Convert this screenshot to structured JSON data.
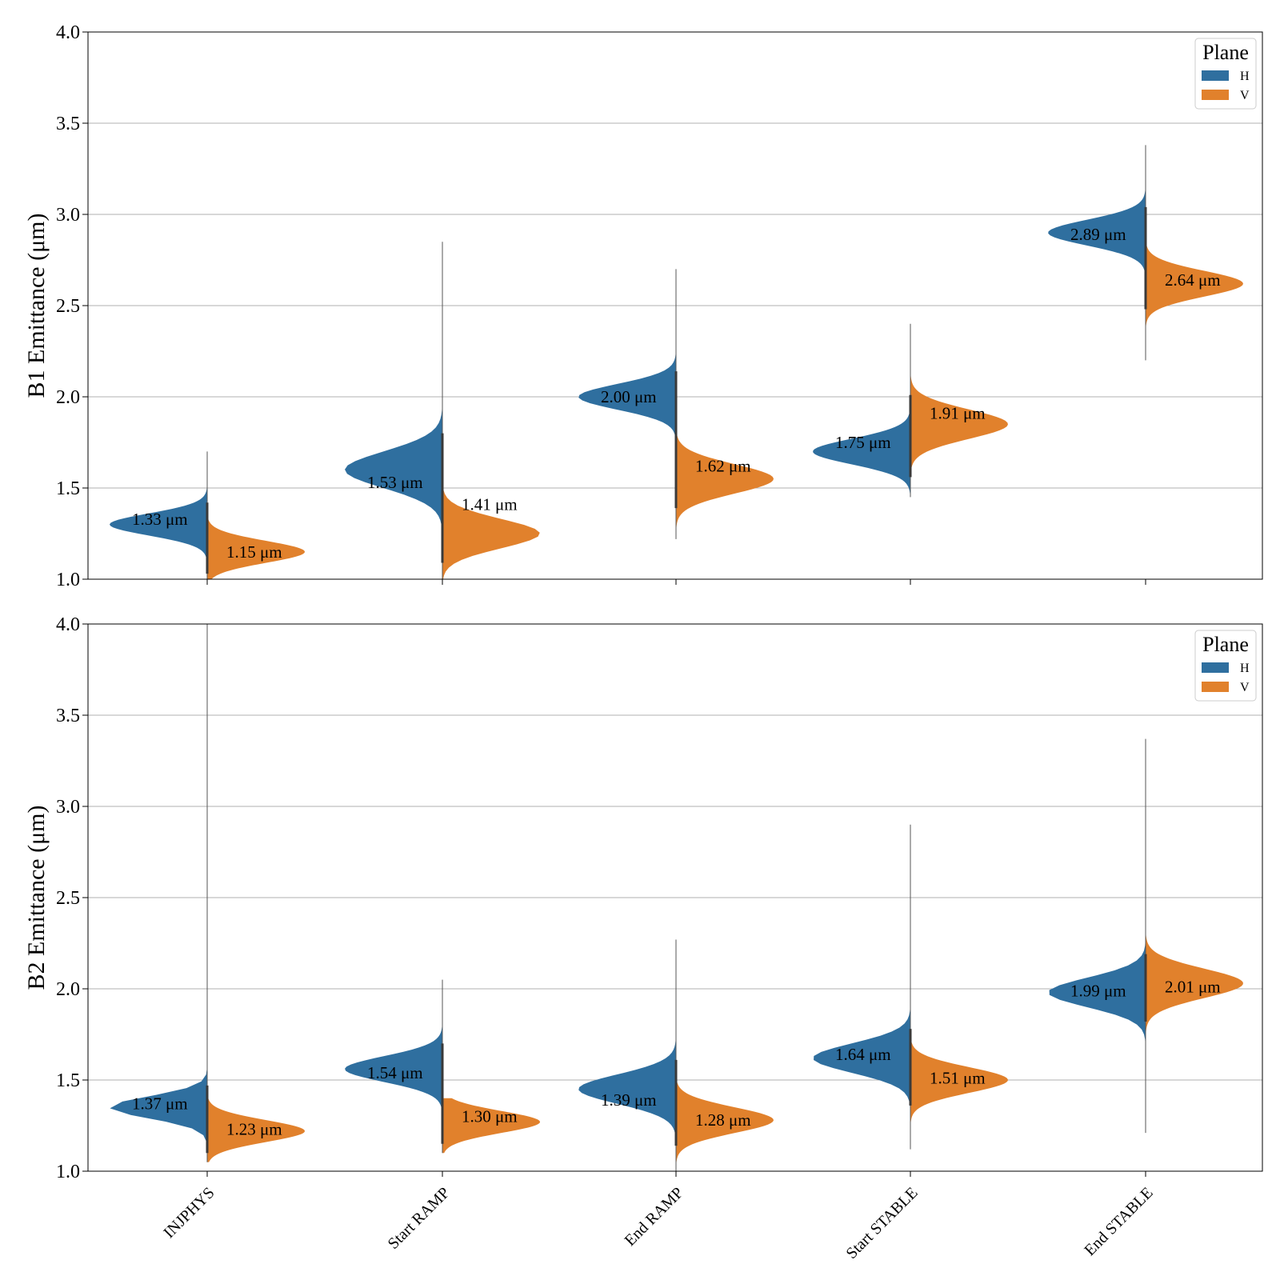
{
  "chart_data": [
    {
      "type": "violin",
      "ylabel": "B1 Emittance (μm)",
      "ylim": [
        1.0,
        4.0
      ],
      "yticks": [
        "1.0",
        "1.5",
        "2.0",
        "2.5",
        "3.0",
        "3.5",
        "4.0"
      ],
      "grid": true,
      "categories": [
        "INJPHYS",
        "Start RAMP",
        "End RAMP",
        "Start STABLE",
        "End STABLE"
      ],
      "show_categories": false,
      "legend": {
        "title": "Plane",
        "position": "top-right",
        "entries": [
          "H",
          "V"
        ]
      },
      "series": [
        {
          "name": "H",
          "color": "#2f6f9f",
          "side": "left",
          "medians": [
            1.33,
            1.53,
            2.0,
            1.75,
            2.89
          ],
          "labels": [
            "1.33 μm",
            "1.53 μm",
            "2.00 μm",
            "1.75 μm",
            "2.89 μm"
          ],
          "range": [
            [
              1.02,
              1.7
            ],
            [
              1.0,
              2.85
            ],
            [
              1.5,
              2.7
            ],
            [
              1.45,
              2.2
            ],
            [
              2.5,
              3.38
            ]
          ],
          "spread": [
            0.06,
            0.1,
            0.07,
            0.07,
            0.07
          ],
          "peak": [
            1.3,
            1.6,
            2.0,
            1.7,
            2.9
          ]
        },
        {
          "name": "V",
          "color": "#e1812c",
          "side": "right",
          "medians": [
            1.15,
            1.41,
            1.62,
            1.91,
            2.64
          ],
          "labels": [
            "1.15 μm",
            "1.41 μm",
            "1.62 μm",
            "1.91 μm",
            "2.64 μm"
          ],
          "range": [
            [
              1.0,
              1.34
            ],
            [
              1.0,
              2.7
            ],
            [
              1.22,
              2.0
            ],
            [
              1.55,
              2.4
            ],
            [
              2.2,
              2.9
            ]
          ],
          "spread": [
            0.06,
            0.08,
            0.08,
            0.08,
            0.07
          ],
          "peak": [
            1.15,
            1.25,
            1.55,
            1.85,
            2.62
          ]
        }
      ]
    },
    {
      "type": "violin",
      "ylabel": "B2 Emittance (μm)",
      "ylim": [
        1.0,
        4.0
      ],
      "yticks": [
        "1.0",
        "1.5",
        "2.0",
        "2.5",
        "3.0",
        "3.5",
        "4.0"
      ],
      "grid": true,
      "categories": [
        "INJPHYS",
        "Start RAMP",
        "End RAMP",
        "Start STABLE",
        "End STABLE"
      ],
      "show_categories": true,
      "legend": {
        "title": "Plane",
        "position": "top-right",
        "entries": [
          "H",
          "V"
        ]
      },
      "series": [
        {
          "name": "H",
          "color": "#2f6f9f",
          "side": "left",
          "medians": [
            1.37,
            1.54,
            1.39,
            1.64,
            1.99
          ],
          "labels": [
            "1.37 μm",
            "1.54 μm",
            "1.39 μm",
            "1.64 μm",
            "1.99 μm"
          ],
          "range": [
            [
              1.05,
              4.0
            ],
            [
              1.12,
              2.05
            ],
            [
              1.0,
              2.27
            ],
            [
              1.12,
              2.9
            ],
            [
              1.21,
              3.37
            ]
          ],
          "spread": [
            0.06,
            0.07,
            0.08,
            0.08,
            0.08
          ],
          "peak": [
            1.35,
            1.56,
            1.45,
            1.62,
            1.98
          ]
        },
        {
          "name": "V",
          "color": "#e1812c",
          "side": "right",
          "medians": [
            1.23,
            1.3,
            1.28,
            1.51,
            2.01
          ],
          "labels": [
            "1.23 μm",
            "1.30 μm",
            "1.28 μm",
            "1.51 μm",
            "2.01 μm"
          ],
          "range": [
            [
              1.05,
              1.4
            ],
            [
              1.1,
              1.4
            ],
            [
              1.0,
              1.62
            ],
            [
              1.22,
              1.85
            ],
            [
              1.68,
              2.35
            ]
          ],
          "spread": [
            0.06,
            0.06,
            0.07,
            0.07,
            0.08
          ],
          "peak": [
            1.22,
            1.27,
            1.28,
            1.5,
            2.03
          ]
        }
      ]
    }
  ]
}
